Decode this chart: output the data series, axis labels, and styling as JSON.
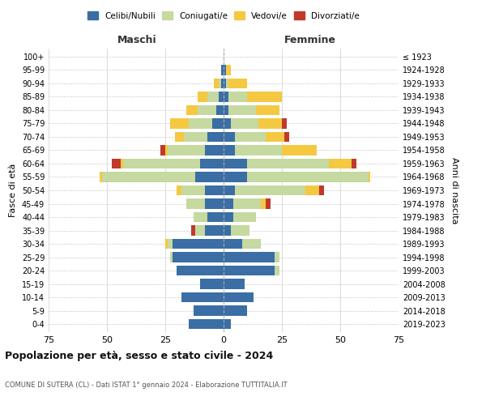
{
  "age_groups": [
    "0-4",
    "5-9",
    "10-14",
    "15-19",
    "20-24",
    "25-29",
    "30-34",
    "35-39",
    "40-44",
    "45-49",
    "50-54",
    "55-59",
    "60-64",
    "65-69",
    "70-74",
    "75-79",
    "80-84",
    "85-89",
    "90-94",
    "95-99",
    "100+"
  ],
  "birth_years": [
    "2019-2023",
    "2014-2018",
    "2009-2013",
    "2004-2008",
    "1999-2003",
    "1994-1998",
    "1989-1993",
    "1984-1988",
    "1979-1983",
    "1974-1978",
    "1969-1973",
    "1964-1968",
    "1959-1963",
    "1954-1958",
    "1949-1953",
    "1944-1948",
    "1939-1943",
    "1934-1938",
    "1929-1933",
    "1924-1928",
    "≤ 1923"
  ],
  "maschi": {
    "celibi": [
      15,
      13,
      18,
      10,
      20,
      22,
      22,
      8,
      7,
      8,
      8,
      12,
      10,
      8,
      7,
      5,
      3,
      2,
      1,
      1,
      0
    ],
    "coniugati": [
      0,
      0,
      0,
      0,
      0,
      1,
      2,
      4,
      6,
      8,
      10,
      40,
      33,
      16,
      10,
      10,
      8,
      5,
      1,
      0,
      0
    ],
    "vedovi": [
      0,
      0,
      0,
      0,
      0,
      0,
      1,
      0,
      0,
      0,
      2,
      1,
      1,
      1,
      4,
      8,
      5,
      4,
      2,
      0,
      0
    ],
    "divorziati": [
      0,
      0,
      0,
      0,
      0,
      0,
      0,
      2,
      0,
      0,
      0,
      0,
      4,
      2,
      0,
      0,
      0,
      0,
      0,
      0,
      0
    ]
  },
  "femmine": {
    "nubili": [
      3,
      10,
      13,
      9,
      22,
      22,
      8,
      3,
      4,
      4,
      5,
      10,
      10,
      5,
      5,
      3,
      2,
      2,
      1,
      1,
      0
    ],
    "coniugate": [
      0,
      0,
      0,
      0,
      2,
      2,
      8,
      8,
      10,
      12,
      30,
      52,
      35,
      20,
      13,
      12,
      12,
      8,
      1,
      0,
      0
    ],
    "vedove": [
      0,
      0,
      0,
      0,
      0,
      0,
      0,
      0,
      0,
      2,
      6,
      1,
      10,
      15,
      8,
      10,
      10,
      15,
      8,
      2,
      0
    ],
    "divorziate": [
      0,
      0,
      0,
      0,
      0,
      0,
      0,
      0,
      0,
      2,
      2,
      0,
      2,
      0,
      2,
      2,
      0,
      0,
      0,
      0,
      0
    ]
  },
  "colors": {
    "celibi": "#3a6ea5",
    "coniugati": "#c5d9a0",
    "vedovi": "#f5c842",
    "divorziati": "#c0392b"
  },
  "title": "Popolazione per età, sesso e stato civile - 2024",
  "subtitle": "COMUNE DI SUTERA (CL) - Dati ISTAT 1° gennaio 2024 - Elaborazione TUTTITALIA.IT",
  "xlabel_left": "Maschi",
  "xlabel_right": "Femmine",
  "ylabel_left": "Fasce di età",
  "ylabel_right": "Anni di nascita",
  "xlim": 75,
  "bg_color": "#ffffff",
  "grid_color": "#cccccc"
}
